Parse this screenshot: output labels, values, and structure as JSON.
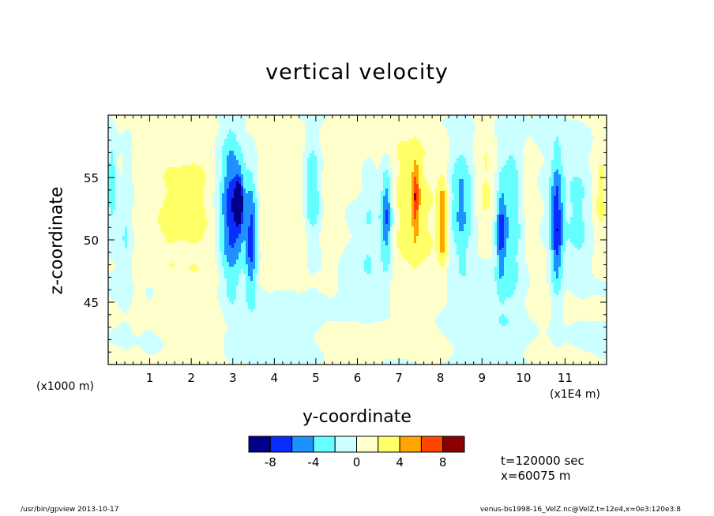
{
  "chart_data": {
    "type": "heatmap",
    "title": "vertical velocity",
    "xlabel": "y-coordinate",
    "ylabel": "z-coordinate",
    "x_unit_label": "(x1E4 m)",
    "y_unit_label": "(x1000 m)",
    "xlim": [
      0,
      120000
    ],
    "ylim": [
      40,
      60
    ],
    "x_ticks": [
      10000,
      20000,
      30000,
      40000,
      50000,
      60000,
      70000,
      80000,
      90000,
      100000,
      110000
    ],
    "x_tick_labels": [
      "1",
      "2",
      "3",
      "4",
      "5",
      "6",
      "7",
      "8",
      "9",
      "10",
      "11"
    ],
    "y_ticks": [
      45,
      50,
      55
    ],
    "y_tick_labels": [
      "45",
      "50",
      "55"
    ],
    "colorbar": {
      "levels": [
        -10,
        -8,
        -6,
        -4,
        -2,
        0,
        2,
        4,
        6,
        8,
        10
      ],
      "colors": [
        "#00008b",
        "#0a2cff",
        "#1e90ff",
        "#66ffff",
        "#ccffff",
        "#ffffcc",
        "#ffff66",
        "#ffa500",
        "#ff4500",
        "#8b0000"
      ],
      "labels": [
        "-8",
        "-4",
        "0",
        "4",
        "8"
      ],
      "label_values": [
        -8,
        -4,
        0,
        4,
        8
      ]
    },
    "annotations": [
      "t=120000 sec",
      "x=60075 m"
    ],
    "features": [
      {
        "y": 1000,
        "z": 54.5,
        "w": -4,
        "sy": 1000,
        "sz": 2.5
      },
      {
        "y": 2500,
        "z": 55,
        "w": 1.5,
        "sy": 1500,
        "sz": 3
      },
      {
        "y": 4500,
        "z": 52,
        "w": -2.5,
        "sy": 1300,
        "sz": 4
      },
      {
        "y": 7000,
        "z": 51,
        "w": 1.8,
        "sy": 1500,
        "sz": 5
      },
      {
        "y": 14000,
        "z": 51.5,
        "w": 1.8,
        "sy": 2500,
        "sz": 4
      },
      {
        "y": 21500,
        "z": 53,
        "w": 2.6,
        "sy": 4000,
        "sz": 4.5
      },
      {
        "y": 30000,
        "z": 52.5,
        "w": -4.5,
        "sy": 2800,
        "sz": 3.5
      },
      {
        "y": 29500,
        "z": 52,
        "w": -3,
        "sy": 1500,
        "sz": 6
      },
      {
        "y": 34500,
        "z": 50,
        "w": -6,
        "sy": 1000,
        "sz": 3.5
      },
      {
        "y": 31500,
        "z": 53,
        "w": -7,
        "sy": 700,
        "sz": 1.5
      },
      {
        "y": 39000,
        "z": 51,
        "w": 1.5,
        "sy": 3000,
        "sz": 4
      },
      {
        "y": 49000,
        "z": 54,
        "w": -4.5,
        "sy": 1500,
        "sz": 3
      },
      {
        "y": 46000,
        "z": 52.5,
        "w": 1.6,
        "sy": 2000,
        "sz": 4
      },
      {
        "y": 54000,
        "z": 52,
        "w": 1.8,
        "sy": 2000,
        "sz": 4
      },
      {
        "y": 60000,
        "z": 46,
        "w": -1.2,
        "sy": 4000,
        "sz": 2
      },
      {
        "y": 63000,
        "z": 52,
        "w": -2,
        "sy": 1500,
        "sz": 4
      },
      {
        "y": 67000,
        "z": 52,
        "w": -7,
        "sy": 1000,
        "sz": 3
      },
      {
        "y": 74000,
        "z": 52,
        "w": 2.8,
        "sy": 4500,
        "sz": 5
      },
      {
        "y": 74000,
        "z": 53.5,
        "w": 5,
        "sy": 600,
        "sz": 2
      },
      {
        "y": 80500,
        "z": 51.5,
        "w": 5.5,
        "sy": 800,
        "sz": 2.5
      },
      {
        "y": 85000,
        "z": 53,
        "w": -4.5,
        "sy": 1800,
        "sz": 3.5
      },
      {
        "y": 91000,
        "z": 54,
        "w": 2.2,
        "sy": 1700,
        "sz": 3
      },
      {
        "y": 97000,
        "z": 52,
        "w": -4,
        "sy": 2200,
        "sz": 5
      },
      {
        "y": 94500,
        "z": 50.5,
        "w": -5.5,
        "sy": 800,
        "sz": 2.5
      },
      {
        "y": 101000,
        "z": 54,
        "w": 2,
        "sy": 1500,
        "sz": 3
      },
      {
        "y": 108000,
        "z": 51,
        "w": -7.5,
        "sy": 1100,
        "sz": 4
      },
      {
        "y": 113000,
        "z": 52,
        "w": -2.5,
        "sy": 2000,
        "sz": 4
      },
      {
        "y": 118500,
        "z": 53.5,
        "w": 2.5,
        "sy": 1200,
        "sz": 2.5
      },
      {
        "y": 60000,
        "z": 57,
        "w": 0.9,
        "sy": 15000,
        "sz": 2
      },
      {
        "y": 20000,
        "z": 43,
        "w": 1,
        "sy": 6000,
        "sz": 2.5
      },
      {
        "y": 45000,
        "z": 44,
        "w": -1.2,
        "sy": 6000,
        "sz": 2
      },
      {
        "y": 62000,
        "z": 42,
        "w": 1.2,
        "sy": 5000,
        "sz": 2
      },
      {
        "y": 90000,
        "z": 44,
        "w": -1.3,
        "sy": 7000,
        "sz": 2.5
      },
      {
        "y": 110000,
        "z": 46,
        "w": 1,
        "sy": 6000,
        "sz": 2
      }
    ]
  },
  "info": {
    "time": "t=120000 sec",
    "position": "x=60075 m"
  },
  "footer": {
    "left": "/usr/bin/gpview   2013-10-17",
    "right": "venus-bs1998-16_VelZ.nc@VelZ,t=12e4,x=0e3:120e3:8"
  }
}
